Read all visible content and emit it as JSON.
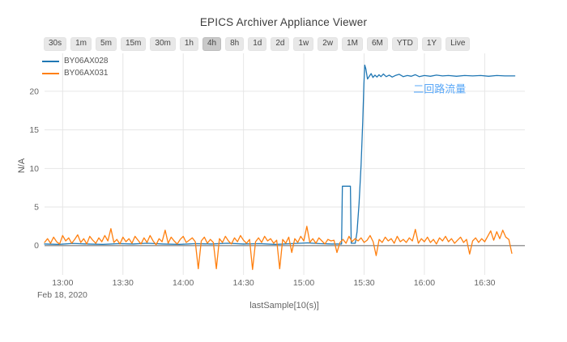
{
  "header": {
    "title": "EPICS Archiver Appliance Viewer"
  },
  "toolbar": {
    "buttons": [
      "30s",
      "1m",
      "5m",
      "15m",
      "30m",
      "1h",
      "4h",
      "8h",
      "1d",
      "2d",
      "1w",
      "2w",
      "1M",
      "6M",
      "YTD",
      "1Y",
      "Live"
    ],
    "active": "4h"
  },
  "chart_data": {
    "type": "line",
    "x_axis": {
      "label": "lastSample[10(s)]",
      "date_label": "Feb 18, 2020",
      "range": [
        771,
        1010
      ],
      "ticks": [
        {
          "t": 780,
          "label": "13:00"
        },
        {
          "t": 810,
          "label": "13:30"
        },
        {
          "t": 840,
          "label": "14:00"
        },
        {
          "t": 870,
          "label": "14:30"
        },
        {
          "t": 900,
          "label": "15:00"
        },
        {
          "t": 930,
          "label": "15:30"
        },
        {
          "t": 960,
          "label": "16:00"
        },
        {
          "t": 990,
          "label": "16:30"
        }
      ]
    },
    "y_axis": {
      "label": "N/A",
      "range": [
        -3.8,
        24.5
      ],
      "ticks": [
        0,
        5,
        10,
        15,
        20
      ]
    },
    "grid": {
      "color": "#e6e6e6",
      "zero_line_color": "#9a9a9a"
    },
    "annotation": {
      "text": "二回路流量",
      "color": "#5aa8f8",
      "t": 954.5,
      "v": 20.3
    },
    "series": [
      {
        "name": "BY06AX028",
        "color": "#1f77b4",
        "points": [
          [
            771,
            0.2
          ],
          [
            778,
            0.15
          ],
          [
            785,
            0.28
          ],
          [
            792,
            0.2
          ],
          [
            800,
            0.15
          ],
          [
            808,
            0.25
          ],
          [
            815,
            0.2
          ],
          [
            822,
            0.3
          ],
          [
            830,
            0.2
          ],
          [
            838,
            0.15
          ],
          [
            846,
            0.25
          ],
          [
            854,
            0.2
          ],
          [
            862,
            0.3
          ],
          [
            870,
            0.2
          ],
          [
            878,
            0.25
          ],
          [
            886,
            0.15
          ],
          [
            894,
            0.25
          ],
          [
            902,
            0.35
          ],
          [
            908,
            0.25
          ],
          [
            914,
            0.2
          ],
          [
            918.8,
            0.2
          ],
          [
            919.2,
            7.7
          ],
          [
            923.2,
            7.7
          ],
          [
            923.6,
            0.3
          ],
          [
            925.6,
            0.3
          ],
          [
            926.5,
            1.8
          ],
          [
            927.5,
            5.5
          ],
          [
            928.5,
            10.5
          ],
          [
            929.3,
            16
          ],
          [
            929.9,
            21
          ],
          [
            930.3,
            23.4
          ],
          [
            930.9,
            22.9
          ],
          [
            931.7,
            21.6
          ],
          [
            932.6,
            21.95
          ],
          [
            933.5,
            22.3
          ],
          [
            934.4,
            21.8
          ],
          [
            935.4,
            22.1
          ],
          [
            936.4,
            21.85
          ],
          [
            937.4,
            22.15
          ],
          [
            938.4,
            21.9
          ],
          [
            939.6,
            22.25
          ],
          [
            941,
            21.9
          ],
          [
            942.5,
            22.1
          ],
          [
            944,
            21.85
          ],
          [
            945.5,
            22.05
          ],
          [
            947.5,
            22.2
          ],
          [
            949.5,
            21.9
          ],
          [
            951.5,
            22.05
          ],
          [
            953.5,
            21.95
          ],
          [
            955.5,
            22.15
          ],
          [
            957.5,
            21.9
          ],
          [
            960,
            22.05
          ],
          [
            963,
            21.95
          ],
          [
            966,
            22.1
          ],
          [
            969,
            22.0
          ],
          [
            972,
            22.05
          ],
          [
            976,
            21.95
          ],
          [
            980,
            22.05
          ],
          [
            984,
            22.0
          ],
          [
            988,
            22.05
          ],
          [
            992,
            21.95
          ],
          [
            996,
            22.05
          ],
          [
            1000,
            22.0
          ],
          [
            1005,
            22.0
          ]
        ]
      },
      {
        "name": "BY06AX031",
        "color": "#ff7f0e",
        "t0": 771,
        "dt": 1.5,
        "values": [
          0.4,
          0.9,
          0.3,
          1.1,
          0.5,
          0.2,
          1.3,
          0.6,
          1.0,
          0.3,
          0.8,
          1.4,
          0.4,
          0.9,
          0.2,
          1.2,
          0.7,
          0.3,
          1.0,
          0.5,
          1.3,
          0.6,
          2.2,
          0.4,
          0.8,
          0.2,
          1.1,
          0.5,
          0.9,
          0.3,
          1.2,
          0.7,
          0.2,
          1.0,
          0.4,
          1.3,
          0.6,
          0.1,
          0.9,
          0.5,
          2.0,
          0.3,
          1.1,
          0.6,
          0.2,
          0.8,
          1.2,
          0.4,
          0.7,
          1.0,
          0.5,
          -3.0,
          0.6,
          1.1,
          0.3,
          0.8,
          0.4,
          -3.0,
          0.9,
          0.4,
          1.2,
          0.6,
          0.2,
          1.0,
          0.5,
          1.3,
          0.7,
          0.3,
          0.8,
          -3.1,
          0.5,
          1.0,
          0.4,
          1.2,
          0.6,
          0.9,
          0.3,
          0.7,
          -3.0,
          0.8,
          0.3,
          1.1,
          -0.9,
          0.9,
          0.4,
          1.2,
          0.6,
          2.5,
          0.4,
          0.9,
          0.3,
          1.0,
          0.6,
          0.2,
          0.8,
          0.6,
          0.7,
          -0.9,
          0.4,
          0.8,
          0.3,
          1.2,
          0.5,
          0.9,
          0.6,
          1.0,
          0.4,
          0.7,
          1.3,
          0.5,
          -1.3,
          0.8,
          0.4,
          1.1,
          0.6,
          0.9,
          0.3,
          1.2,
          0.5,
          0.8,
          0.4,
          1.0,
          0.6,
          2.1,
          0.3,
          0.9,
          0.5,
          1.1,
          0.4,
          0.8,
          0.2,
          1.0,
          0.6,
          1.2,
          0.5,
          0.9,
          0.3,
          0.7,
          1.1,
          0.4,
          0.8,
          -1.1,
          0.6,
          1.0,
          0.4,
          0.9,
          0.5,
          1.2,
          1.9,
          0.7,
          1.8,
          0.9,
          2.0,
          1.1,
          0.8,
          -1.0
        ]
      }
    ]
  }
}
